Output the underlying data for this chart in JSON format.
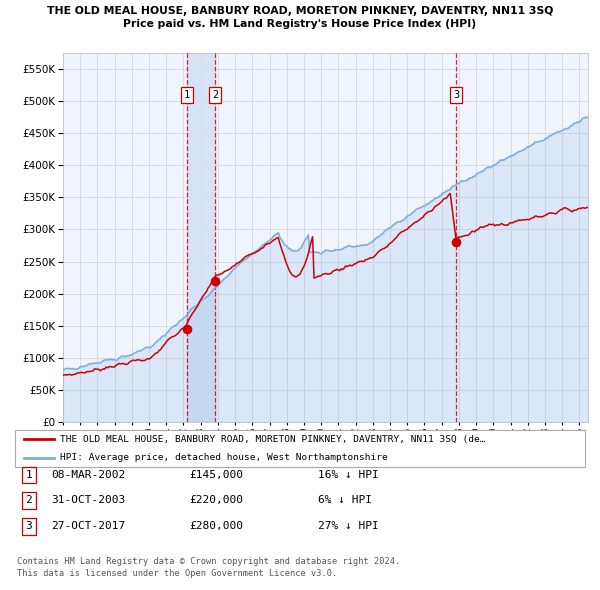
{
  "title": "THE OLD MEAL HOUSE, BANBURY ROAD, MORETON PINKNEY, DAVENTRY, NN11 3SQ",
  "subtitle": "Price paid vs. HM Land Registry's House Price Index (HPI)",
  "ylim": [
    0,
    575000
  ],
  "yticks": [
    0,
    50000,
    100000,
    150000,
    200000,
    250000,
    300000,
    350000,
    400000,
    450000,
    500000,
    550000
  ],
  "x_start_year": 1995,
  "x_end_year": 2025,
  "sale_prices": [
    145000,
    220000,
    280000
  ],
  "sale_labels": [
    "1",
    "2",
    "3"
  ],
  "sale_hpi_relation": [
    "16% ↓ HPI",
    "6% ↓ HPI",
    "27% ↓ HPI"
  ],
  "sale_dates_str": [
    "08-MAR-2002",
    "31-OCT-2003",
    "27-OCT-2017"
  ],
  "legend_red_label": "THE OLD MEAL HOUSE, BANBURY ROAD, MORETON PINKNEY, DAVENTRY, NN11 3SQ (de…",
  "legend_blue_label": "HPI: Average price, detached house, West Northamptonshire",
  "footer_line1": "Contains HM Land Registry data © Crown copyright and database right 2024.",
  "footer_line2": "This data is licensed under the Open Government Licence v3.0.",
  "red_color": "#cc0000",
  "blue_color": "#7aadde",
  "chart_bg": "#f0f4ff",
  "grid_color": "#d8d8d8",
  "dashed_line_color": "#dd0000",
  "shade_color": "#d0dff5",
  "sale1_year": 2002.19,
  "sale2_year": 2003.83,
  "sale3_year": 2017.83
}
